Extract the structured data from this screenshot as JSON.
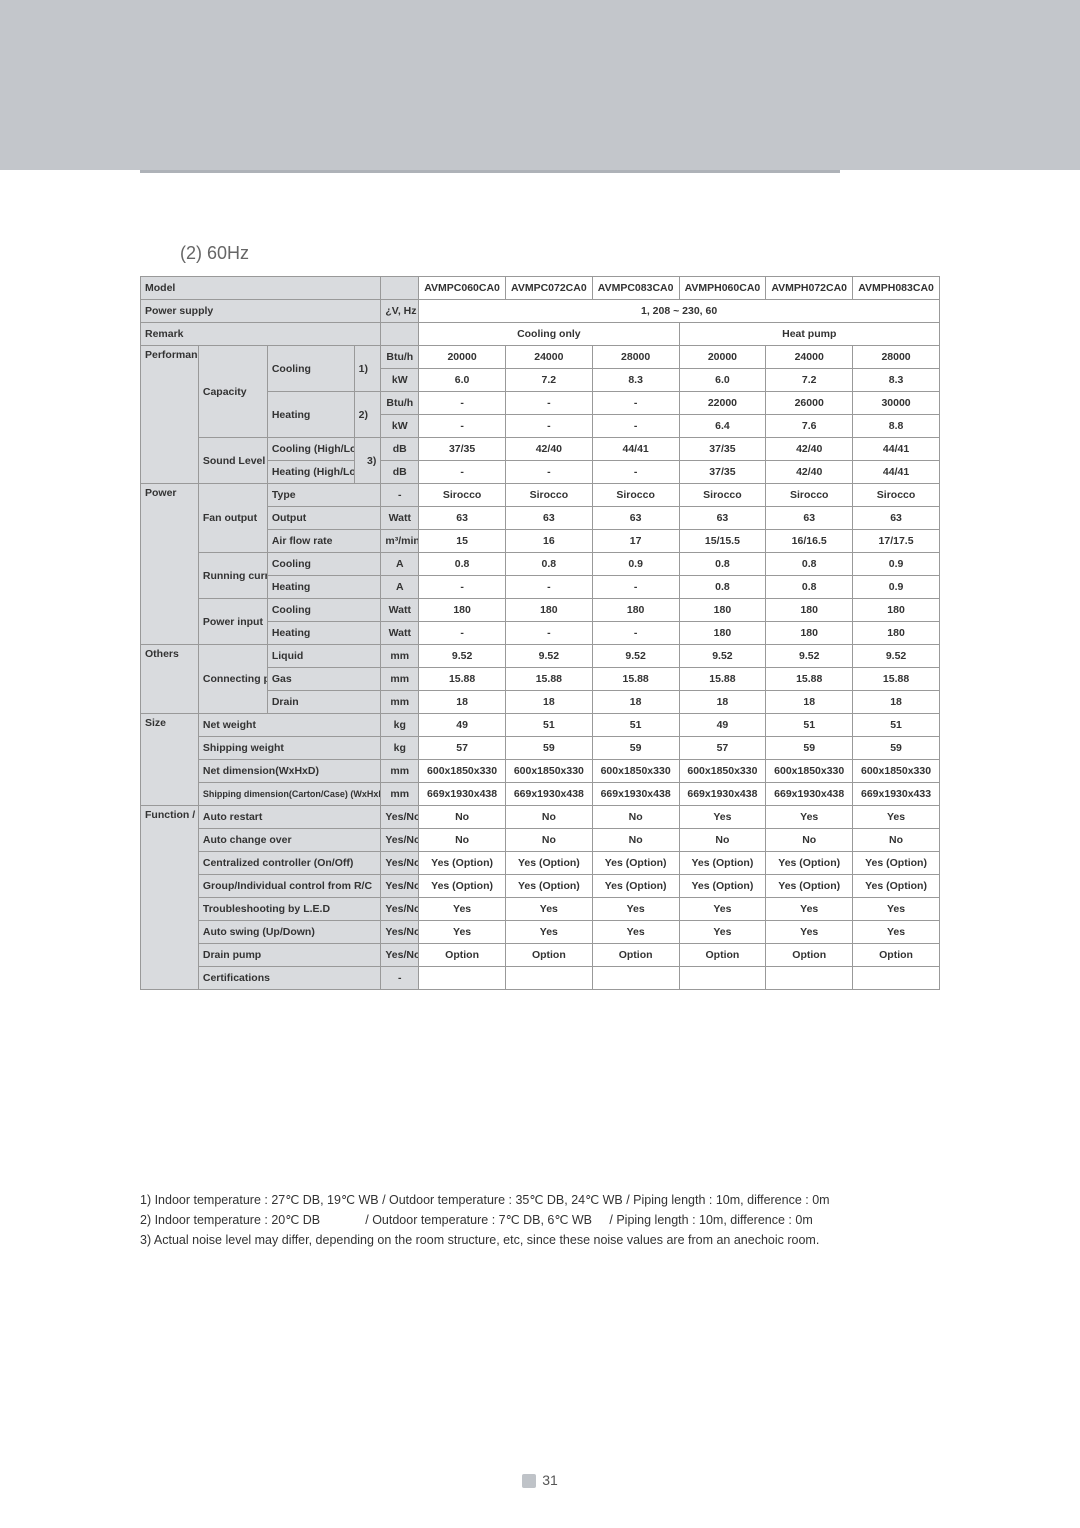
{
  "subtitle": "(2) 60Hz",
  "models": [
    "AVMPC060CA0",
    "AVMPC072CA0",
    "AVMPC083CA0",
    "AVMPH060CA0",
    "AVMPH072CA0",
    "AVMPH083CA0"
  ],
  "header_model": "Model",
  "power_supply_label": "Power supply",
  "power_supply_unit": "¿V, Hz",
  "power_supply_value": "1, 208 ~ 230, 60",
  "remark_label": "Remark",
  "remark_cooling": "Cooling only",
  "remark_heat": "Heat pump",
  "cat": {
    "performance": "Performance",
    "power": "Power",
    "others": "Others",
    "size": "Size",
    "function": "Function / Option"
  },
  "rows": {
    "capacity_label": "Capacity",
    "cooling_label": "Cooling",
    "heating_label": "Heating",
    "note1": "1)",
    "note2": "2)",
    "note3": "3)",
    "sound_label": "Sound Level",
    "cooling_hl": "Cooling (High/Low)",
    "heating_hl": "Heating (High/Low)",
    "fan_output": "Fan output",
    "type": "Type",
    "output": "Output",
    "airflow": "Air flow rate",
    "running_current": "Running current",
    "power_input": "Power input",
    "connecting_pipe": "Connecting pipe",
    "liquid": "Liquid",
    "gas": "Gas",
    "drain": "Drain",
    "net_weight": "Net weight",
    "shipping_weight": "Shipping weight",
    "net_dim": "Net dimension(WxHxD)",
    "ship_dim": "Shipping dimension(Carton/Case) (WxHxD)",
    "auto_restart": "Auto restart",
    "auto_change": "Auto change over",
    "central": "Centralized controller (On/Off)",
    "group": "Group/Individual control from R/C",
    "trouble": "Troubleshooting by L.E.D",
    "swing": "Auto swing (Up/Down)",
    "drain_pump": "Drain pump",
    "cert": "Certifications"
  },
  "units": {
    "btuh": "Btu/h",
    "kw": "kW",
    "db": "dB",
    "dash": "-",
    "watt": "Watt",
    "m3min": "m³/min",
    "a": "A",
    "mm": "mm",
    "kg": "kg",
    "yesno": "Yes/No"
  },
  "v": {
    "cap_cool_btu": [
      "20000",
      "24000",
      "28000",
      "20000",
      "24000",
      "28000"
    ],
    "cap_cool_kw": [
      "6.0",
      "7.2",
      "8.3",
      "6.0",
      "7.2",
      "8.3"
    ],
    "cap_heat_btu": [
      "-",
      "-",
      "-",
      "22000",
      "26000",
      "30000"
    ],
    "cap_heat_kw": [
      "-",
      "-",
      "-",
      "6.4",
      "7.6",
      "8.8"
    ],
    "snd_cool": [
      "37/35",
      "42/40",
      "44/41",
      "37/35",
      "42/40",
      "44/41"
    ],
    "snd_heat": [
      "-",
      "-",
      "-",
      "37/35",
      "42/40",
      "44/41"
    ],
    "fan_type": [
      "Sirocco",
      "Sirocco",
      "Sirocco",
      "Sirocco",
      "Sirocco",
      "Sirocco"
    ],
    "fan_out": [
      "63",
      "63",
      "63",
      "63",
      "63",
      "63"
    ],
    "fan_flow": [
      "15",
      "16",
      "17",
      "15/15.5",
      "16/16.5",
      "17/17.5"
    ],
    "rc_cool": [
      "0.8",
      "0.8",
      "0.9",
      "0.8",
      "0.8",
      "0.9"
    ],
    "rc_heat": [
      "-",
      "-",
      "-",
      "0.8",
      "0.8",
      "0.9"
    ],
    "pi_cool": [
      "180",
      "180",
      "180",
      "180",
      "180",
      "180"
    ],
    "pi_heat": [
      "-",
      "-",
      "-",
      "180",
      "180",
      "180"
    ],
    "pipe_liq": [
      "9.52",
      "9.52",
      "9.52",
      "9.52",
      "9.52",
      "9.52"
    ],
    "pipe_gas": [
      "15.88",
      "15.88",
      "15.88",
      "15.88",
      "15.88",
      "15.88"
    ],
    "pipe_drain": [
      "18",
      "18",
      "18",
      "18",
      "18",
      "18"
    ],
    "net_w": [
      "49",
      "51",
      "51",
      "49",
      "51",
      "51"
    ],
    "ship_w": [
      "57",
      "59",
      "59",
      "57",
      "59",
      "59"
    ],
    "net_dim": [
      "600x1850x330",
      "600x1850x330",
      "600x1850x330",
      "600x1850x330",
      "600x1850x330",
      "600x1850x330"
    ],
    "ship_dim": [
      "669x1930x438",
      "669x1930x438",
      "669x1930x438",
      "669x1930x438",
      "669x1930x438",
      "669x1930x433"
    ],
    "auto_restart": [
      "No",
      "No",
      "No",
      "Yes",
      "Yes",
      "Yes"
    ],
    "auto_change": [
      "No",
      "No",
      "No",
      "No",
      "No",
      "No"
    ],
    "central": [
      "Yes (Option)",
      "Yes (Option)",
      "Yes (Option)",
      "Yes (Option)",
      "Yes (Option)",
      "Yes (Option)"
    ],
    "group": [
      "Yes (Option)",
      "Yes (Option)",
      "Yes (Option)",
      "Yes (Option)",
      "Yes (Option)",
      "Yes (Option)"
    ],
    "trouble": [
      "Yes",
      "Yes",
      "Yes",
      "Yes",
      "Yes",
      "Yes"
    ],
    "swing": [
      "Yes",
      "Yes",
      "Yes",
      "Yes",
      "Yes",
      "Yes"
    ],
    "drain_pump": [
      "Option",
      "Option",
      "Option",
      "Option",
      "Option",
      "Option"
    ],
    "cert": [
      "",
      "",
      "",
      "",
      "",
      ""
    ]
  },
  "footnotes": {
    "f1": "1) Indoor temperature : 27℃ DB, 19℃ WB / Outdoor temperature : 35℃ DB, 24℃ WB / Piping length : 10m, difference : 0m",
    "f2": "2) Indoor temperature : 20℃ DB             / Outdoor temperature : 7℃ DB, 6℃ WB     / Piping length : 10m, difference : 0m",
    "f3": "3) Actual noise level may differ, depending on the room structure, etc, since these noise values are from an anechoic room."
  },
  "page": "31"
}
